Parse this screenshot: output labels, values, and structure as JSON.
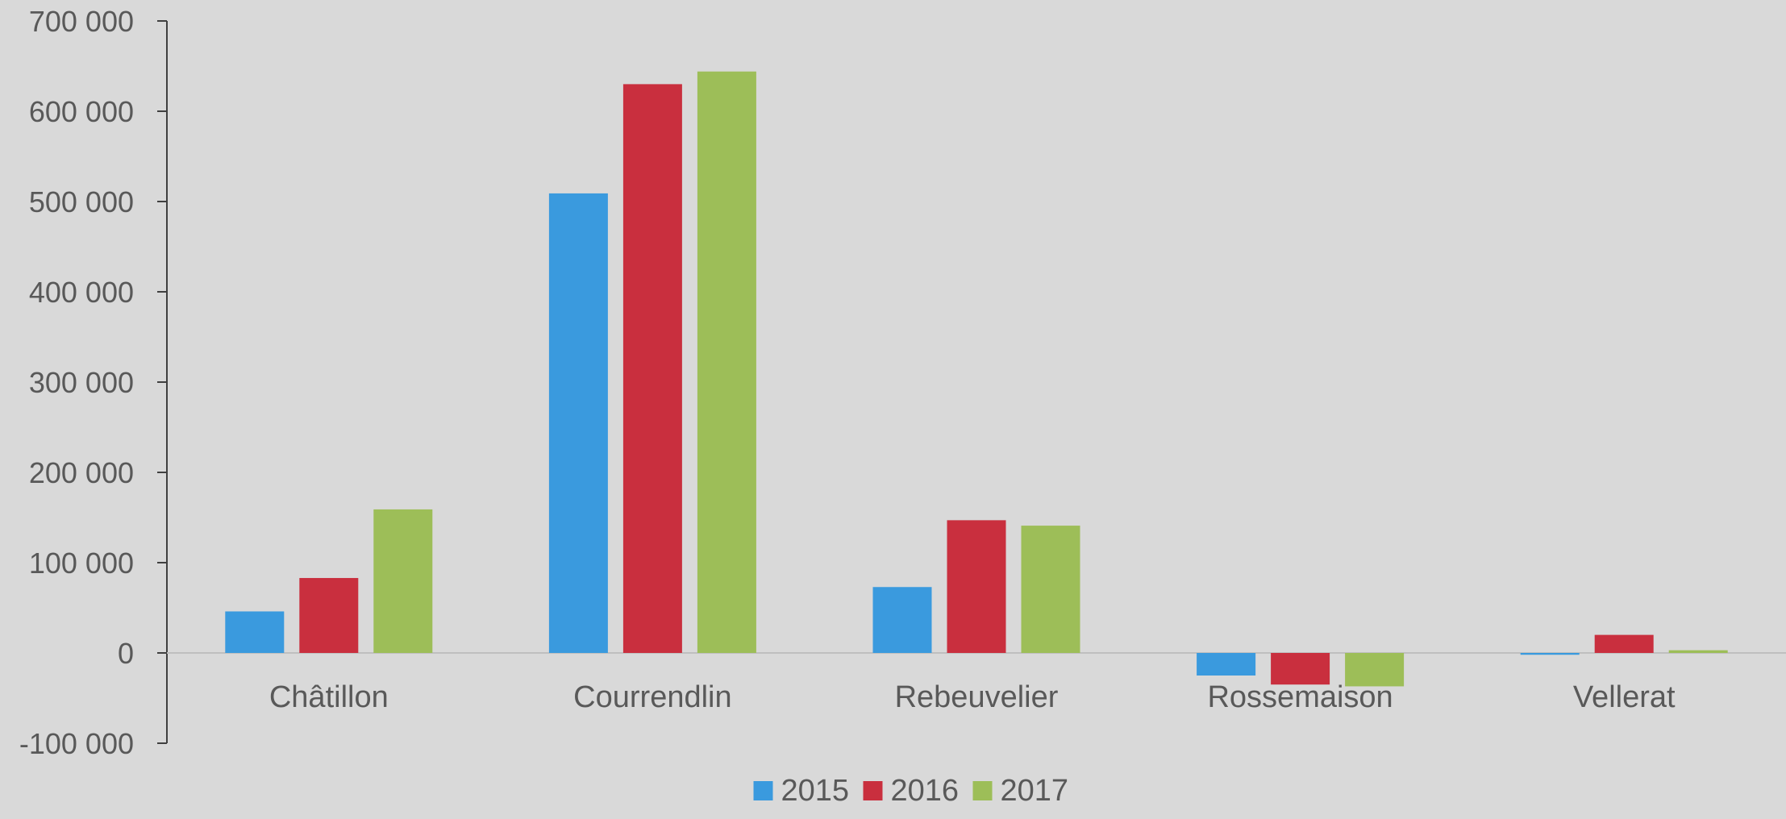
{
  "chart_data": {
    "type": "bar",
    "categories": [
      "Châtillon",
      "Courrendlin",
      "Rebeuvelier",
      "Rossemaison",
      "Vellerat"
    ],
    "series": [
      {
        "name": "2015",
        "color": "#3a9ade",
        "values": [
          46000,
          509000,
          73000,
          -25000,
          -2000
        ]
      },
      {
        "name": "2016",
        "color": "#c92f3e",
        "values": [
          83000,
          630000,
          147000,
          -35000,
          20000
        ]
      },
      {
        "name": "2017",
        "color": "#9dbe58",
        "values": [
          159000,
          644000,
          141000,
          -37000,
          3000
        ]
      }
    ],
    "ylim": [
      -100000,
      700000
    ],
    "yticks": [
      -100000,
      0,
      100000,
      200000,
      300000,
      400000,
      500000,
      600000,
      700000
    ],
    "ytick_labels": [
      "-100 000",
      "0",
      "100 000",
      "200 000",
      "300 000",
      "400 000",
      "500 000",
      "600 000",
      "700 000"
    ],
    "legend_position": "bottom-center",
    "grid": false,
    "text_color": "#595959",
    "axis_color": "#404040"
  }
}
